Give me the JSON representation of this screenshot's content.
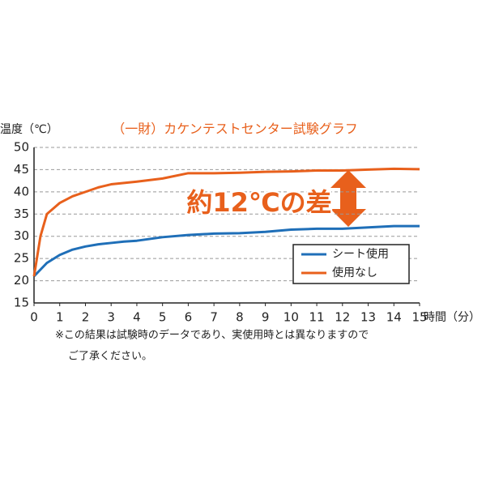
{
  "chart_data": {
    "type": "line",
    "title": "（一財）カケンテストセンター試験グラフ",
    "y_label": "温度（℃）",
    "x_label": "時間（分）",
    "annotation": "約12℃の差",
    "notes": [
      "※この結果は試験時のデータであり、実使用時とは異なりますので",
      "ご了承ください。"
    ],
    "x": [
      0,
      0.25,
      0.5,
      1,
      1.5,
      2,
      2.5,
      3,
      3.5,
      4,
      5,
      6,
      7,
      8,
      9,
      10,
      11,
      12,
      13,
      14,
      15
    ],
    "series": [
      {
        "name": "シート使用",
        "color": "#1f6fb8",
        "values": [
          21,
          22.5,
          24,
          25.8,
          27,
          27.7,
          28.2,
          28.5,
          28.8,
          29,
          29.8,
          30.3,
          30.6,
          30.7,
          31,
          31.5,
          31.7,
          31.7,
          32,
          32.3,
          32.3
        ]
      },
      {
        "name": "使用なし",
        "color": "#e8601c",
        "values": [
          21,
          30,
          35,
          37.5,
          39,
          40,
          41,
          41.7,
          42,
          42.3,
          43,
          44.2,
          44.2,
          44.3,
          44.5,
          44.6,
          44.8,
          44.8,
          45,
          45.2,
          45.1
        ]
      }
    ],
    "xlim": [
      0,
      15
    ],
    "xticks": [
      0,
      1,
      2,
      3,
      4,
      5,
      6,
      7,
      8,
      9,
      10,
      11,
      12,
      13,
      14,
      15
    ],
    "ylim": [
      15,
      50
    ],
    "yticks": [
      15,
      20,
      25,
      30,
      35,
      40,
      45,
      50
    ],
    "grid": true
  }
}
